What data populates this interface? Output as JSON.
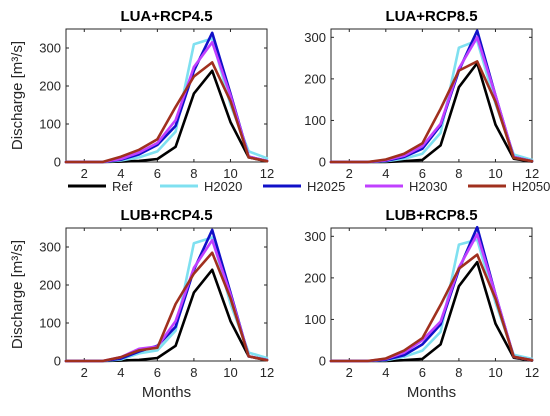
{
  "chart_data": [
    {
      "type": "line",
      "title": "LUA+RCP4.5",
      "ylabel": "Discharge [m³/s]",
      "xlabel": "",
      "x": [
        1,
        2,
        3,
        4,
        5,
        6,
        7,
        8,
        9,
        10,
        11,
        12
      ],
      "xlim": [
        1,
        12
      ],
      "ylim": [
        0,
        350
      ],
      "xticks": [
        2,
        4,
        6,
        8,
        10,
        12
      ],
      "yticks": [
        0,
        100,
        200,
        300
      ],
      "grid": false,
      "series": [
        {
          "name": "Ref",
          "color": "#000000",
          "values": [
            0,
            0,
            0,
            1,
            3,
            8,
            40,
            180,
            240,
            105,
            12,
            2
          ]
        },
        {
          "name": "H2020",
          "color": "#7fe0f0",
          "values": [
            0,
            0,
            0,
            4,
            12,
            28,
            80,
            310,
            325,
            150,
            28,
            10
          ]
        },
        {
          "name": "H2025",
          "color": "#1010c8",
          "values": [
            0,
            0,
            0,
            6,
            20,
            45,
            95,
            240,
            340,
            180,
            14,
            3
          ]
        },
        {
          "name": "H2030",
          "color": "#c040ff",
          "values": [
            0,
            0,
            0,
            8,
            25,
            50,
            110,
            250,
            315,
            175,
            14,
            3
          ]
        },
        {
          "name": "H2050",
          "color": "#a0301e",
          "values": [
            0,
            0,
            0,
            14,
            32,
            60,
            145,
            225,
            262,
            160,
            12,
            2
          ]
        }
      ]
    },
    {
      "type": "line",
      "title": "LUA+RCP8.5",
      "ylabel": "",
      "xlabel": "",
      "x": [
        1,
        2,
        3,
        4,
        5,
        6,
        7,
        8,
        9,
        10,
        11,
        12
      ],
      "xlim": [
        1,
        12
      ],
      "ylim": [
        0,
        320
      ],
      "xticks": [
        2,
        4,
        6,
        8,
        10,
        12
      ],
      "yticks": [
        0,
        100,
        200,
        300
      ],
      "grid": false,
      "series": [
        {
          "name": "Ref",
          "color": "#000000",
          "values": [
            0,
            0,
            0,
            0,
            2,
            5,
            40,
            180,
            238,
            90,
            8,
            1
          ]
        },
        {
          "name": "H2020",
          "color": "#7fe0f0",
          "values": [
            0,
            0,
            0,
            2,
            8,
            20,
            70,
            275,
            292,
            140,
            18,
            5
          ]
        },
        {
          "name": "H2025",
          "color": "#1010c8",
          "values": [
            0,
            0,
            0,
            3,
            12,
            32,
            88,
            220,
            316,
            160,
            12,
            2
          ]
        },
        {
          "name": "H2030",
          "color": "#c040ff",
          "values": [
            0,
            0,
            0,
            4,
            15,
            38,
            92,
            225,
            300,
            160,
            12,
            2
          ]
        },
        {
          "name": "H2050",
          "color": "#a0301e",
          "values": [
            0,
            0,
            0,
            6,
            20,
            45,
            128,
            220,
            242,
            145,
            10,
            2
          ]
        }
      ]
    },
    {
      "type": "line",
      "title": "LUB+RCP4.5",
      "ylabel": "Discharge [m³/s]",
      "xlabel": "Months",
      "x": [
        1,
        2,
        3,
        4,
        5,
        6,
        7,
        8,
        9,
        10,
        11,
        12
      ],
      "xlim": [
        1,
        12
      ],
      "ylim": [
        0,
        350
      ],
      "xticks": [
        2,
        4,
        6,
        8,
        10,
        12
      ],
      "yticks": [
        0,
        100,
        200,
        300
      ],
      "grid": false,
      "series": [
        {
          "name": "Ref",
          "color": "#000000",
          "values": [
            0,
            0,
            0,
            1,
            3,
            8,
            40,
            180,
            240,
            105,
            12,
            2
          ]
        },
        {
          "name": "H2020",
          "color": "#7fe0f0",
          "values": [
            0,
            0,
            0,
            4,
            20,
            28,
            80,
            310,
            325,
            150,
            22,
            8
          ]
        },
        {
          "name": "H2025",
          "color": "#1010c8",
          "values": [
            0,
            0,
            0,
            6,
            25,
            40,
            90,
            240,
            345,
            180,
            12,
            3
          ]
        },
        {
          "name": "H2030",
          "color": "#c040ff",
          "values": [
            0,
            0,
            0,
            10,
            32,
            38,
            105,
            245,
            318,
            175,
            12,
            3
          ]
        },
        {
          "name": "H2050",
          "color": "#a0301e",
          "values": [
            0,
            0,
            0,
            10,
            28,
            35,
            150,
            230,
            285,
            165,
            12,
            2
          ]
        }
      ]
    },
    {
      "type": "line",
      "title": "LUB+RCP8.5",
      "ylabel": "",
      "xlabel": "Months",
      "x": [
        1,
        2,
        3,
        4,
        5,
        6,
        7,
        8,
        9,
        10,
        11,
        12
      ],
      "xlim": [
        1,
        12
      ],
      "ylim": [
        0,
        320
      ],
      "xticks": [
        2,
        4,
        6,
        8,
        10,
        12
      ],
      "yticks": [
        0,
        100,
        200,
        300
      ],
      "grid": false,
      "series": [
        {
          "name": "Ref",
          "color": "#000000",
          "values": [
            0,
            0,
            0,
            0,
            2,
            5,
            40,
            180,
            238,
            90,
            8,
            1
          ]
        },
        {
          "name": "H2020",
          "color": "#7fe0f0",
          "values": [
            0,
            0,
            0,
            2,
            10,
            25,
            70,
            280,
            292,
            140,
            15,
            5
          ]
        },
        {
          "name": "H2025",
          "color": "#1010c8",
          "values": [
            0,
            0,
            0,
            3,
            14,
            40,
            88,
            220,
            322,
            160,
            10,
            2
          ]
        },
        {
          "name": "H2030",
          "color": "#c040ff",
          "values": [
            0,
            0,
            0,
            5,
            20,
            50,
            95,
            225,
            305,
            160,
            10,
            2
          ]
        },
        {
          "name": "H2050",
          "color": "#a0301e",
          "values": [
            0,
            0,
            0,
            6,
            25,
            55,
            135,
            222,
            256,
            150,
            10,
            2
          ]
        }
      ]
    }
  ],
  "legend": {
    "placement": "center, between rows",
    "items": [
      {
        "name": "Ref",
        "color": "#000000"
      },
      {
        "name": "H2020",
        "color": "#7fe0f0"
      },
      {
        "name": "H2025",
        "color": "#1010c8"
      },
      {
        "name": "H2030",
        "color": "#c040ff"
      },
      {
        "name": "H2050",
        "color": "#a0301e"
      }
    ]
  }
}
